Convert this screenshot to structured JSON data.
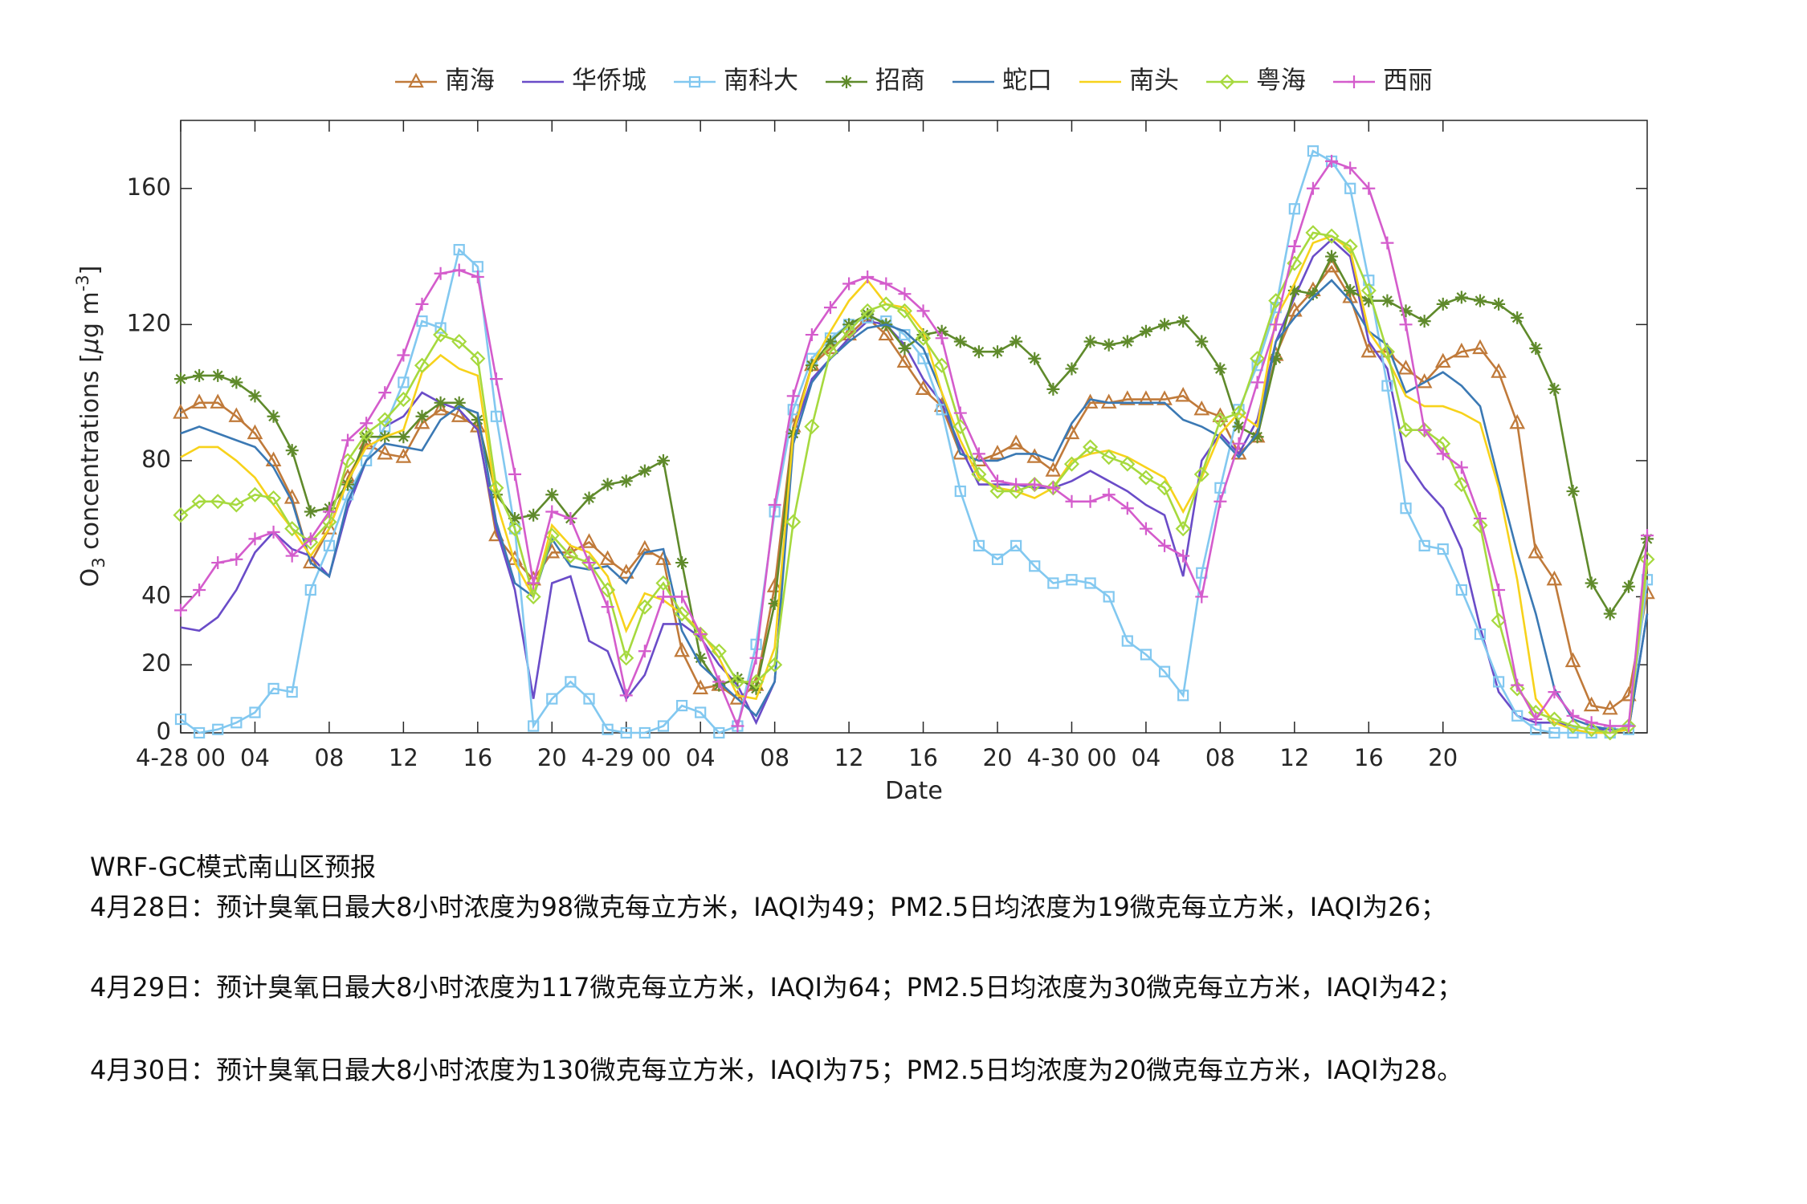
{
  "chart_data": {
    "type": "line",
    "ylabel": [
      "O",
      "3",
      " concentrations [",
      "μ",
      "g m",
      "-3",
      "]"
    ],
    "xlabel": "Date",
    "x": [
      0,
      1,
      2,
      3,
      4,
      5,
      6,
      7,
      8,
      9,
      10,
      11,
      12,
      13,
      14,
      15,
      16,
      17,
      18,
      19,
      20,
      21,
      22,
      23,
      24,
      25,
      26,
      27,
      28,
      29,
      30,
      31,
      32,
      33,
      34,
      35,
      36,
      37,
      38,
      39,
      40,
      41,
      42,
      43,
      44,
      45,
      46,
      47,
      48,
      49,
      50,
      51,
      52,
      53,
      54,
      55,
      56,
      57,
      58,
      59,
      60,
      61,
      62,
      63,
      64,
      65,
      66,
      67,
      68,
      69,
      70,
      71,
      72,
      73,
      74,
      75,
      76,
      77,
      78,
      79
    ],
    "xlim": [
      0,
      79
    ],
    "xticks": [
      {
        "value": 0,
        "label": "4-28 00"
      },
      {
        "value": 4,
        "label": "04"
      },
      {
        "value": 8,
        "label": "08"
      },
      12,
      16,
      20,
      {
        "value": 24,
        "label": "4-29 00"
      },
      {
        "value": 28,
        "label": "04"
      },
      {
        "value": 32,
        "label": "08"
      },
      {
        "value": 36,
        "label": "12"
      },
      {
        "value": 40,
        "label": "16"
      },
      {
        "value": 44,
        "label": "20"
      },
      {
        "value": 48,
        "label": "4-30 00"
      },
      {
        "value": 52,
        "label": "04"
      },
      {
        "value": 56,
        "label": "08"
      },
      {
        "value": 60,
        "label": "12"
      },
      {
        "value": 64,
        "label": "16"
      },
      {
        "value": 68,
        "label": "20"
      }
    ],
    "ylim": [
      0,
      180
    ],
    "yticks": [
      0,
      20,
      40,
      80,
      120,
      160
    ],
    "series": [
      {
        "name": "南海",
        "color": "#c07a3a",
        "marker": "triangle",
        "values": [
          94,
          97,
          97,
          93,
          88,
          80,
          69,
          50,
          60,
          75,
          85,
          82,
          81,
          91,
          95,
          93,
          90,
          58,
          51,
          45,
          53,
          53,
          56,
          51,
          47,
          54,
          51,
          24,
          13,
          14,
          10,
          14,
          43,
          90,
          108,
          113,
          117,
          122,
          117,
          109,
          101,
          96,
          82,
          80,
          82,
          85,
          81,
          77,
          88,
          97,
          97,
          98,
          98,
          98,
          99,
          95,
          93,
          82,
          87,
          111,
          124,
          130,
          137,
          128,
          112,
          112,
          107,
          103,
          109,
          112,
          113,
          106,
          91,
          53,
          45,
          21,
          8,
          7,
          11,
          41
        ]
      },
      {
        "name": "华侨城",
        "color": "#6a4cc8",
        "values": [
          31,
          30,
          34,
          42,
          53,
          59,
          54,
          52,
          46,
          66,
          80,
          90,
          93,
          100,
          97,
          95,
          89,
          60,
          42,
          10,
          44,
          46,
          27,
          24,
          10,
          17,
          32,
          32,
          28,
          20,
          14,
          3,
          15,
          88,
          104,
          110,
          116,
          121,
          120,
          114,
          104,
          97,
          84,
          73,
          73,
          73,
          72,
          72,
          74,
          77,
          74,
          71,
          67,
          64,
          46,
          80,
          88,
          82,
          92,
          115,
          128,
          140,
          145,
          140,
          115,
          107,
          80,
          72,
          66,
          54,
          31,
          12,
          5,
          3,
          3,
          2,
          1,
          1,
          1,
          35
        ]
      },
      {
        "name": "南科大",
        "color": "#82c8f0",
        "marker": "square",
        "values": [
          4,
          0,
          1,
          3,
          6,
          13,
          12,
          42,
          55,
          70,
          80,
          90,
          103,
          121,
          119,
          142,
          137,
          93,
          60,
          2,
          10,
          15,
          10,
          1,
          0,
          0,
          2,
          8,
          6,
          0,
          2,
          26,
          65,
          95,
          110,
          116,
          120,
          122,
          121,
          117,
          110,
          95,
          71,
          55,
          51,
          55,
          49,
          44,
          45,
          44,
          40,
          27,
          23,
          18,
          11,
          47,
          72,
          95,
          108,
          125,
          154,
          171,
          168,
          160,
          133,
          102,
          66,
          55,
          54,
          42,
          29,
          15,
          5,
          1,
          0,
          0,
          0,
          0,
          1,
          45
        ]
      },
      {
        "name": "招商",
        "color": "#5f8a2b",
        "marker": "asterisk",
        "values": [
          104,
          105,
          105,
          103,
          99,
          93,
          83,
          65,
          66,
          73,
          87,
          87,
          87,
          93,
          97,
          97,
          92,
          70,
          63,
          64,
          70,
          63,
          69,
          73,
          74,
          77,
          80,
          50,
          22,
          14,
          16,
          13,
          38,
          88,
          108,
          115,
          120,
          123,
          120,
          113,
          117,
          118,
          115,
          112,
          112,
          115,
          110,
          101,
          107,
          115,
          114,
          115,
          118,
          120,
          121,
          115,
          107,
          90,
          87,
          110,
          130,
          129,
          140,
          130,
          127,
          127,
          124,
          121,
          126,
          128,
          127,
          126,
          122,
          113,
          101,
          71,
          44,
          35,
          43,
          57
        ]
      },
      {
        "name": "蛇口",
        "color": "#3b79b4",
        "values": [
          88,
          90,
          88,
          86,
          84,
          78,
          68,
          50,
          46,
          68,
          80,
          85,
          84,
          83,
          92,
          96,
          94,
          62,
          44,
          40,
          57,
          49,
          48,
          49,
          44,
          53,
          54,
          30,
          20,
          15,
          10,
          5,
          15,
          85,
          103,
          110,
          115,
          119,
          120,
          118,
          113,
          100,
          82,
          80,
          80,
          82,
          82,
          80,
          91,
          98,
          97,
          97,
          97,
          97,
          92,
          90,
          87,
          81,
          88,
          115,
          122,
          128,
          133,
          127,
          118,
          114,
          100,
          103,
          106,
          102,
          96,
          74,
          53,
          35,
          13,
          4,
          2,
          1,
          1,
          35
        ]
      },
      {
        "name": "南头",
        "color": "#f7d21b",
        "values": [
          81,
          84,
          84,
          80,
          75,
          67,
          60,
          52,
          60,
          74,
          84,
          87,
          89,
          106,
          111,
          107,
          105,
          68,
          50,
          40,
          61,
          55,
          53,
          46,
          30,
          41,
          39,
          35,
          30,
          22,
          11,
          10,
          25,
          88,
          108,
          118,
          127,
          133,
          126,
          125,
          118,
          100,
          86,
          75,
          72,
          71,
          69,
          72,
          80,
          82,
          83,
          81,
          78,
          75,
          65,
          75,
          88,
          94,
          90,
          122,
          132,
          144,
          146,
          142,
          118,
          110,
          99,
          96,
          96,
          94,
          91,
          72,
          45,
          10,
          3,
          1,
          0,
          0,
          1,
          50
        ]
      },
      {
        "name": "粤海",
        "color": "#a6d93e",
        "marker": "diamond",
        "values": [
          64,
          68,
          68,
          67,
          70,
          69,
          60,
          56,
          62,
          80,
          88,
          92,
          98,
          108,
          117,
          115,
          110,
          72,
          60,
          40,
          58,
          52,
          50,
          42,
          22,
          37,
          44,
          35,
          29,
          24,
          15,
          15,
          20,
          62,
          90,
          112,
          118,
          124,
          126,
          124,
          116,
          108,
          90,
          76,
          71,
          71,
          73,
          72,
          79,
          84,
          81,
          79,
          75,
          72,
          60,
          76,
          92,
          94,
          110,
          127,
          138,
          147,
          146,
          143,
          130,
          112,
          89,
          89,
          85,
          73,
          61,
          33,
          13,
          6,
          4,
          2,
          1,
          0,
          2,
          51
        ]
      },
      {
        "name": "西丽",
        "color": "#d45ccc",
        "marker": "plus",
        "values": [
          36,
          42,
          50,
          51,
          57,
          59,
          52,
          57,
          65,
          86,
          91,
          100,
          111,
          126,
          135,
          136,
          134,
          104,
          76,
          44,
          65,
          63,
          50,
          37,
          11,
          24,
          40,
          40,
          29,
          15,
          2,
          22,
          67,
          99,
          117,
          125,
          132,
          134,
          132,
          129,
          124,
          116,
          94,
          82,
          74,
          73,
          73,
          72,
          68,
          68,
          70,
          66,
          60,
          55,
          52,
          40,
          68,
          85,
          103,
          120,
          143,
          160,
          168,
          166,
          160,
          144,
          120,
          89,
          82,
          78,
          63,
          42,
          14,
          4,
          12,
          5,
          3,
          2,
          2,
          58
        ]
      }
    ]
  },
  "forecast": {
    "title": "WRF-GC模式南山区预报",
    "lines": [
      "4月28日：预计臭氧日最大8小时浓度为98微克每立方米，IAQI为49；PM2.5日均浓度为19微克每立方米，IAQI为26；",
      "4月29日：预计臭氧日最大8小时浓度为117微克每立方米，IAQI为64；PM2.5日均浓度为30微克每立方米，IAQI为42；",
      "4月30日：预计臭氧日最大8小时浓度为130微克每立方米，IAQI为75；PM2.5日均浓度为20微克每立方米，IAQI为28。"
    ]
  }
}
